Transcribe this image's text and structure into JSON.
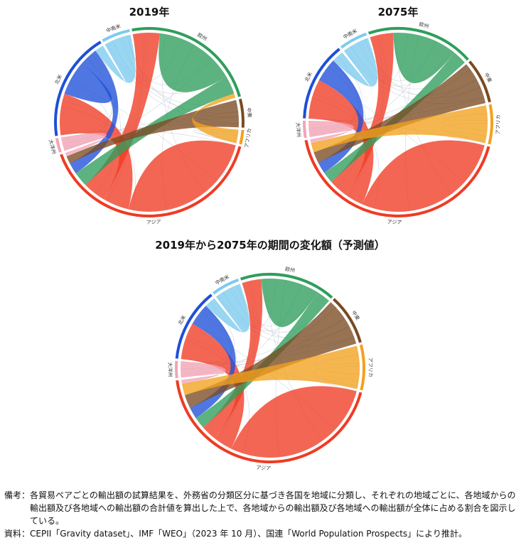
{
  "colors": {
    "アジア": "#ef3b24",
    "欧州": "#2e9e5b",
    "北米": "#1f4fd8",
    "中南米": "#7ccbee",
    "中東": "#7a4a22",
    "アフリカ": "#f2a11d",
    "大洋州": "#f4a3b5"
  },
  "chart_data": [
    {
      "type": "chord",
      "title": "2019年",
      "regions": [
        {
          "name": "アジア",
          "label": "アジア",
          "share": 0.41
        },
        {
          "name": "大洋州",
          "label": "大洋州",
          "share": 0.025
        },
        {
          "name": "北米",
          "label": "北米",
          "share": 0.19
        },
        {
          "name": "中南米",
          "label": "中南米",
          "share": 0.05
        },
        {
          "name": "欧州",
          "label": "欧州",
          "share": 0.24
        },
        {
          "name": "中東",
          "label": "中東",
          "share": 0.05
        },
        {
          "name": "アフリカ",
          "label": "アフリカ",
          "share": 0.025
        }
      ],
      "flows": [
        {
          "from": "アジア",
          "to": "アジア",
          "value": 18
        },
        {
          "from": "アジア",
          "to": "北米",
          "value": 7
        },
        {
          "from": "アジア",
          "to": "欧州",
          "value": 6
        },
        {
          "from": "欧州",
          "to": "欧州",
          "value": 9
        },
        {
          "from": "欧州",
          "to": "アジア",
          "value": 4
        },
        {
          "from": "北米",
          "to": "北米",
          "value": 3
        },
        {
          "from": "北米",
          "to": "アジア",
          "value": 3
        },
        {
          "from": "中東",
          "to": "アジア",
          "value": 2
        },
        {
          "from": "中南米",
          "to": "北米",
          "value": 1.5
        },
        {
          "from": "アフリカ",
          "to": "欧州",
          "value": 1
        },
        {
          "from": "大洋州",
          "to": "アジア",
          "value": 1
        }
      ]
    },
    {
      "type": "chord",
      "title": "2075年",
      "regions": [
        {
          "name": "アジア",
          "label": "アジア",
          "share": 0.44
        },
        {
          "name": "大洋州",
          "label": "大洋州",
          "share": 0.03
        },
        {
          "name": "北米",
          "label": "北米",
          "share": 0.14
        },
        {
          "name": "中南米",
          "label": "中南米",
          "share": 0.05
        },
        {
          "name": "欧州",
          "label": "欧州",
          "share": 0.19
        },
        {
          "name": "中東",
          "label": "中東",
          "share": 0.08
        },
        {
          "name": "アフリカ",
          "label": "アフリカ",
          "share": 0.07
        }
      ],
      "flows": [
        {
          "from": "アジア",
          "to": "アジア",
          "value": 20
        },
        {
          "from": "アジア",
          "to": "北米",
          "value": 5
        },
        {
          "from": "アジア",
          "to": "欧州",
          "value": 5
        },
        {
          "from": "欧州",
          "to": "欧州",
          "value": 7
        },
        {
          "from": "欧州",
          "to": "アジア",
          "value": 3
        },
        {
          "from": "北米",
          "to": "アジア",
          "value": 3
        },
        {
          "from": "中東",
          "to": "アジア",
          "value": 3
        },
        {
          "from": "アフリカ",
          "to": "アジア",
          "value": 2.5
        },
        {
          "from": "中南米",
          "to": "北米",
          "value": 1.5
        },
        {
          "from": "大洋州",
          "to": "アジア",
          "value": 1
        }
      ]
    },
    {
      "type": "chord",
      "title": "2019年から2075年の期間の変化額（予測値）",
      "regions": [
        {
          "name": "アジア",
          "label": "アジア",
          "share": 0.45
        },
        {
          "name": "大洋州",
          "label": "大洋州",
          "share": 0.03
        },
        {
          "name": "北米",
          "label": "北米",
          "share": 0.13
        },
        {
          "name": "中南米",
          "label": "中南米",
          "share": 0.05
        },
        {
          "name": "欧州",
          "label": "欧州",
          "share": 0.17
        },
        {
          "name": "中東",
          "label": "中東",
          "share": 0.09
        },
        {
          "name": "アフリカ",
          "label": "アフリカ",
          "share": 0.08
        }
      ],
      "flows": [
        {
          "from": "アジア",
          "to": "アジア",
          "value": 20
        },
        {
          "from": "アジア",
          "to": "北米",
          "value": 5
        },
        {
          "from": "アジア",
          "to": "欧州",
          "value": 4
        },
        {
          "from": "欧州",
          "to": "欧州",
          "value": 6
        },
        {
          "from": "欧州",
          "to": "アジア",
          "value": 3
        },
        {
          "from": "北米",
          "to": "アジア",
          "value": 3
        },
        {
          "from": "中東",
          "to": "アジア",
          "value": 3.5
        },
        {
          "from": "アフリカ",
          "to": "アジア",
          "value": 3
        },
        {
          "from": "中南米",
          "to": "北米",
          "value": 1.5
        },
        {
          "from": "大洋州",
          "to": "アジア",
          "value": 1
        }
      ]
    }
  ],
  "notes": {
    "remarks_label": "備考：",
    "remarks_text": "各貿易ペアごとの輸出額の試算結果を、外務省の分類区分に基づき各国を地域に分類し、それぞれの地域ごとに、各地域からの輸出額及び各地域への輸出額の合計値を算出した上で、各地域からの輸出額及び各地域への輸出額が全体に占める割合を図示している。",
    "source_label": "資料：",
    "source_text": "CEPII「Gravity dataset」、IMF「WEO」（2023 年 10 月）、国連「World Population Prospects」により推計。"
  }
}
